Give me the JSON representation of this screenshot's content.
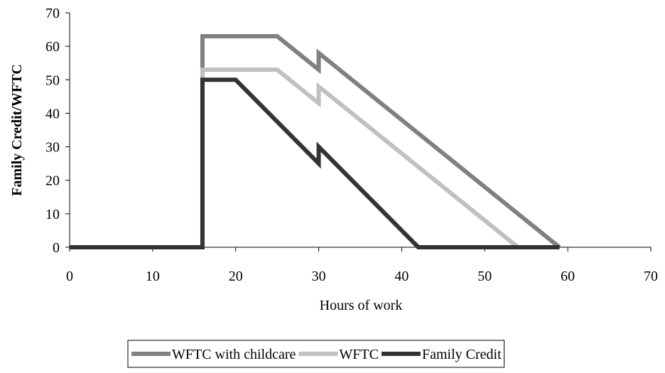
{
  "chart_data": {
    "type": "line",
    "y_label": "Family Credit/WFTC",
    "x_label": "Hours of work",
    "xlim": [
      0,
      70
    ],
    "xticks": [
      0,
      10,
      20,
      30,
      40,
      50,
      60,
      70
    ],
    "ylim": [
      0,
      70
    ],
    "yticks": [
      0,
      10,
      20,
      30,
      40,
      50,
      60,
      70
    ],
    "grid": false,
    "legend": "bottom",
    "series": [
      {
        "name": "WFTC with childcare",
        "color": "#808080",
        "x": [
          0,
          16,
          16,
          25,
          30,
          30,
          59
        ],
        "values": [
          0,
          0,
          63,
          63,
          53,
          58,
          0
        ]
      },
      {
        "name": "WFTC",
        "color": "#c0c0c0",
        "x": [
          0,
          16,
          16,
          25,
          30,
          30,
          54
        ],
        "values": [
          0,
          0,
          53,
          53,
          43,
          48,
          0
        ]
      },
      {
        "name": "Family Credit",
        "color": "#333333",
        "x": [
          0,
          16,
          16,
          20,
          30,
          30,
          42,
          59
        ],
        "values": [
          0,
          0,
          50,
          50,
          25,
          30,
          0,
          0
        ]
      }
    ]
  }
}
